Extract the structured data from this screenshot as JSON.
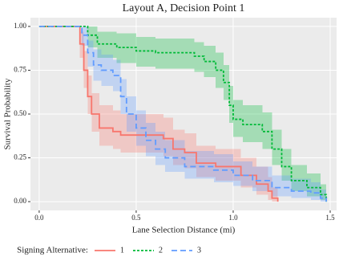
{
  "chart_data": {
    "type": "step",
    "title": "Layout A, Decision Point 1",
    "x_label": "Lane Selection Distance (mi)",
    "y_label": "Survival Probability",
    "legend_title": "Signing Alternative:",
    "legend_position": "bottom",
    "grid": true,
    "xlim": [
      -0.045,
      1.533
    ],
    "ylim": [
      -0.05,
      1.05
    ],
    "xticks": [
      {
        "value": 0,
        "label": "0.0"
      },
      {
        "value": 0.5,
        "label": "0.5"
      },
      {
        "value": 1,
        "label": "1.0"
      },
      {
        "value": 1.5,
        "label": "1.5"
      }
    ],
    "yticks": [
      {
        "value": 0,
        "label": "0.00"
      },
      {
        "value": 0.25,
        "label": "0.25"
      },
      {
        "value": 0.5,
        "label": "0.50"
      },
      {
        "value": 0.75,
        "label": "0.75"
      },
      {
        "value": 1,
        "label": "1.00"
      }
    ],
    "series": [
      {
        "name": "1",
        "color": "#F8766D",
        "linestyle": "solid",
        "x": [
          0,
          0.16,
          0.21,
          0.23,
          0.25,
          0.27,
          0.31,
          0.38,
          0.42,
          0.64,
          0.69,
          0.75,
          0.81,
          0.91,
          1.04,
          1.12,
          1.18,
          1.2,
          1.23
        ],
        "values": [
          1,
          1,
          0.9,
          0.75,
          0.6,
          0.5,
          0.42,
          0.4,
          0.38,
          0.36,
          0.3,
          0.28,
          0.22,
          0.2,
          0.15,
          0.1,
          0.06,
          0.02,
          0
        ],
        "lower": [
          1,
          1,
          0.82,
          0.65,
          0.5,
          0.4,
          0.32,
          0.3,
          0.28,
          0.26,
          0.21,
          0.19,
          0.14,
          0.12,
          0.08,
          0.04,
          0.01,
          0,
          0
        ],
        "upper": [
          1,
          1,
          0.97,
          0.86,
          0.72,
          0.62,
          0.55,
          0.52,
          0.5,
          0.48,
          0.41,
          0.39,
          0.32,
          0.3,
          0.25,
          0.2,
          0.14,
          0.08,
          0.04
        ]
      },
      {
        "name": "2",
        "color": "#00BA38",
        "linestyle": "dotted",
        "x": [
          0,
          0.23,
          0.25,
          0.3,
          0.4,
          0.5,
          0.6,
          0.8,
          0.85,
          0.91,
          0.95,
          0.98,
          1.0,
          1.05,
          1.15,
          1.2,
          1.25,
          1.3,
          1.38,
          1.45,
          1.48
        ],
        "values": [
          1,
          1,
          0.95,
          0.9,
          0.88,
          0.86,
          0.85,
          0.83,
          0.8,
          0.75,
          0.68,
          0.55,
          0.47,
          0.44,
          0.4,
          0.3,
          0.2,
          0.12,
          0.08,
          0.04,
          0
        ],
        "lower": [
          1,
          1,
          0.88,
          0.82,
          0.79,
          0.77,
          0.76,
          0.74,
          0.71,
          0.65,
          0.58,
          0.45,
          0.37,
          0.34,
          0.3,
          0.21,
          0.12,
          0.06,
          0.03,
          0.01,
          0
        ],
        "upper": [
          1,
          1,
          1,
          0.97,
          0.96,
          0.94,
          0.93,
          0.91,
          0.89,
          0.85,
          0.78,
          0.66,
          0.58,
          0.55,
          0.51,
          0.41,
          0.3,
          0.21,
          0.16,
          0.1,
          0.05
        ]
      },
      {
        "name": "3",
        "color": "#619CFF",
        "linestyle": "dashed",
        "x": [
          0,
          0.2,
          0.22,
          0.25,
          0.28,
          0.32,
          0.38,
          0.42,
          0.45,
          0.5,
          0.55,
          0.6,
          0.65,
          0.75,
          0.9,
          1.0,
          1.1,
          1.2,
          1.3,
          1.4,
          1.45,
          1.48
        ],
        "values": [
          1,
          1,
          0.95,
          0.85,
          0.78,
          0.75,
          0.72,
          0.6,
          0.5,
          0.42,
          0.35,
          0.3,
          0.25,
          0.2,
          0.18,
          0.15,
          0.12,
          0.08,
          0.06,
          0.05,
          0.02,
          0
        ],
        "lower": [
          1,
          1,
          0.89,
          0.77,
          0.69,
          0.66,
          0.63,
          0.5,
          0.4,
          0.32,
          0.26,
          0.21,
          0.17,
          0.13,
          0.11,
          0.09,
          0.06,
          0.03,
          0.02,
          0.01,
          0,
          0
        ],
        "upper": [
          1,
          1,
          1,
          0.92,
          0.87,
          0.84,
          0.81,
          0.7,
          0.6,
          0.52,
          0.45,
          0.4,
          0.35,
          0.29,
          0.27,
          0.23,
          0.2,
          0.15,
          0.13,
          0.11,
          0.07,
          0.04
        ]
      }
    ]
  }
}
